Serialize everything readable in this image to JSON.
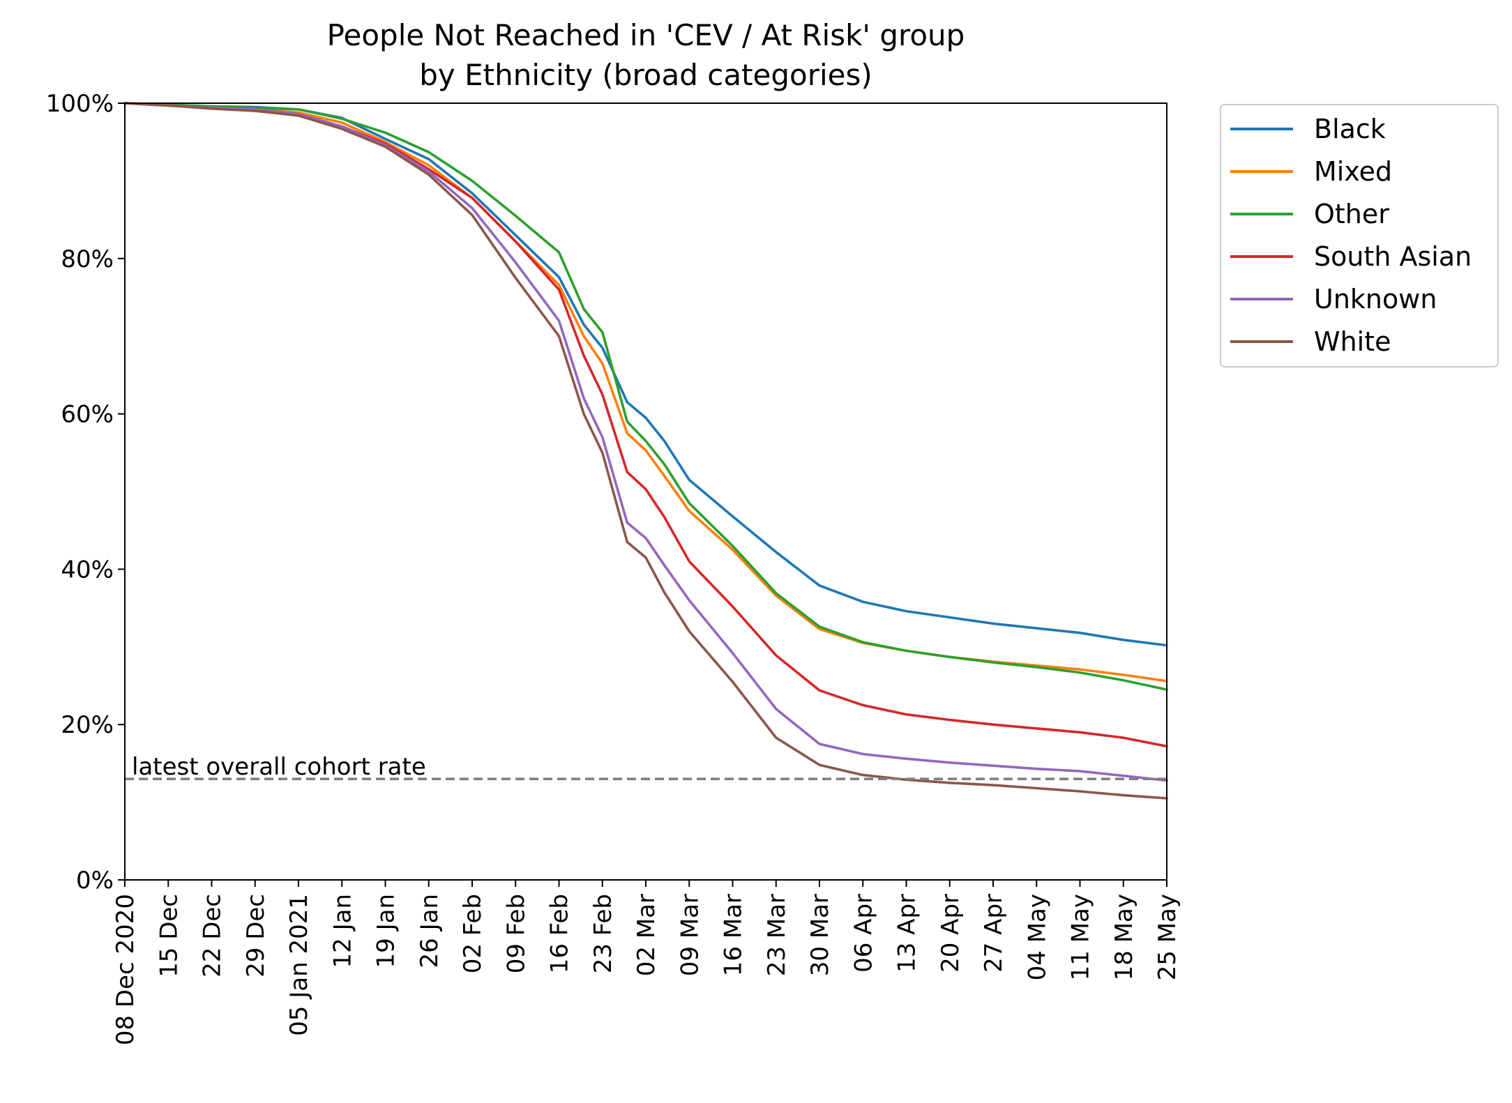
{
  "chart_data": {
    "type": "line",
    "title": "People Not Reached in 'CEV / At Risk' group",
    "subtitle": "by Ethnicity (broad categories)",
    "xlabel": "",
    "ylabel": "",
    "x_axis": {
      "type": "date",
      "range": [
        "2020-12-08",
        "2021-05-25"
      ],
      "tick_labels": [
        "08 Dec 2020",
        "15 Dec",
        "22 Dec",
        "29 Dec",
        "05 Jan 2021",
        "12 Jan",
        "19 Jan",
        "26 Jan",
        "02 Feb",
        "09 Feb",
        "16 Feb",
        "23 Feb",
        "02 Mar",
        "09 Mar",
        "16 Mar",
        "23 Mar",
        "30 Mar",
        "06 Apr",
        "13 Apr",
        "20 Apr",
        "27 Apr",
        "04 May",
        "11 May",
        "18 May",
        "25 May"
      ]
    },
    "y_axis": {
      "ylim": [
        0,
        100
      ],
      "unit": "%",
      "tick_labels": [
        "0%",
        "20%",
        "40%",
        "60%",
        "80%",
        "100%"
      ]
    },
    "grid": false,
    "legend_position": "outside-right-top",
    "reference_line": {
      "value": 13.0,
      "label": "latest overall cohort rate",
      "color": "#808080",
      "style": "dashed"
    },
    "x": [
      "2020-12-08",
      "2020-12-15",
      "2020-12-22",
      "2020-12-29",
      "2021-01-05",
      "2021-01-12",
      "2021-01-19",
      "2021-01-26",
      "2021-02-02",
      "2021-02-09",
      "2021-02-16",
      "2021-02-20",
      "2021-02-23",
      "2021-02-27",
      "2021-03-02",
      "2021-03-05",
      "2021-03-09",
      "2021-03-16",
      "2021-03-23",
      "2021-03-30",
      "2021-04-06",
      "2021-04-13",
      "2021-04-20",
      "2021-04-27",
      "2021-05-04",
      "2021-05-11",
      "2021-05-18",
      "2021-05-25"
    ],
    "series": [
      {
        "name": "Black",
        "color": "#1f77b4",
        "values": [
          100,
          99.8,
          99.6,
          99.5,
          99.2,
          98.1,
          95.4,
          92.8,
          88.4,
          83.0,
          77.6,
          71.5,
          68.5,
          61.5,
          59.5,
          56.5,
          51.5,
          46.8,
          42.2,
          37.9,
          35.8,
          34.6,
          33.8,
          33.0,
          32.4,
          31.8,
          30.9,
          30.2
        ]
      },
      {
        "name": "Mixed",
        "color": "#ff7f0e",
        "values": [
          100,
          99.7,
          99.4,
          99.2,
          98.8,
          97.5,
          95.0,
          92.0,
          87.8,
          82.2,
          76.6,
          70.0,
          66.5,
          57.5,
          55.3,
          52.0,
          47.5,
          42.5,
          36.6,
          32.3,
          30.5,
          29.5,
          28.7,
          28.1,
          27.6,
          27.1,
          26.4,
          25.6
        ]
      },
      {
        "name": "Other",
        "color": "#2ca02c",
        "values": [
          100,
          99.8,
          99.6,
          99.4,
          99.2,
          98.0,
          96.2,
          93.7,
          90.0,
          85.5,
          80.8,
          73.5,
          70.5,
          59.0,
          56.5,
          53.5,
          48.5,
          43.0,
          36.9,
          32.6,
          30.6,
          29.5,
          28.7,
          28.0,
          27.4,
          26.7,
          25.7,
          24.5
        ]
      },
      {
        "name": "South Asian",
        "color": "#d62728",
        "values": [
          100,
          99.7,
          99.4,
          99.2,
          98.6,
          97.0,
          94.8,
          91.5,
          87.8,
          82.2,
          76.0,
          67.5,
          62.5,
          52.5,
          50.3,
          46.7,
          41.0,
          35.2,
          28.9,
          24.4,
          22.5,
          21.3,
          20.6,
          20.0,
          19.5,
          19.0,
          18.3,
          17.2
        ]
      },
      {
        "name": "Unknown",
        "color": "#9467bd",
        "values": [
          100,
          99.7,
          99.4,
          99.2,
          98.6,
          97.0,
          94.6,
          91.2,
          86.5,
          79.5,
          72.0,
          62.0,
          57.0,
          46.0,
          44.0,
          40.5,
          36.0,
          29.2,
          22.0,
          17.5,
          16.2,
          15.6,
          15.1,
          14.7,
          14.3,
          14.0,
          13.4,
          12.8
        ]
      },
      {
        "name": "White",
        "color": "#8c564b",
        "values": [
          100,
          99.7,
          99.3,
          99.0,
          98.4,
          96.7,
          94.4,
          90.8,
          85.6,
          77.5,
          70.0,
          60.0,
          55.0,
          43.5,
          41.5,
          37.0,
          32.0,
          25.5,
          18.3,
          14.8,
          13.5,
          12.9,
          12.5,
          12.2,
          11.8,
          11.4,
          10.9,
          10.5
        ]
      }
    ]
  }
}
